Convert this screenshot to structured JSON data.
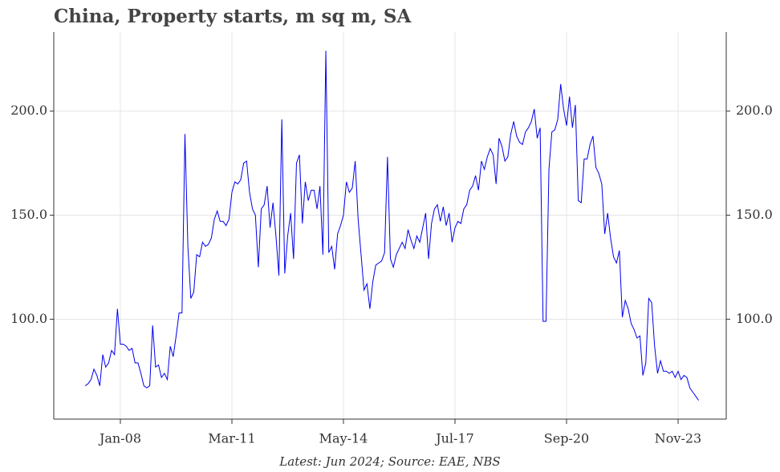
{
  "chart_data": {
    "type": "line",
    "title": "China, Property starts, m sq m, SA",
    "footnote": "Latest: Jun 2024; Source: EAE, NBS",
    "color": "#0000ee",
    "grid": true,
    "categories": [
      null,
      null,
      null,
      null,
      null,
      null,
      null,
      null,
      null,
      null,
      null,
      null,
      "Jan-08",
      null,
      null,
      null,
      null,
      null,
      null,
      null,
      null,
      null,
      null,
      null,
      null,
      null,
      null,
      null,
      null,
      null,
      null,
      null,
      null,
      null,
      null,
      null,
      null,
      null,
      null,
      null,
      null,
      null,
      null,
      null,
      null,
      null,
      null,
      null,
      null,
      null,
      "Mar-11",
      null,
      null,
      null,
      null,
      null,
      null,
      null,
      null,
      null,
      null,
      null,
      null,
      null,
      null,
      null,
      null,
      null,
      null,
      null,
      null,
      null,
      null,
      null,
      null,
      null,
      null,
      null,
      null,
      null,
      null,
      null,
      null,
      null,
      null,
      null,
      null,
      null,
      "May-14",
      null,
      null,
      null,
      null,
      null,
      null,
      null,
      null,
      null,
      null,
      null,
      null,
      null,
      null,
      null,
      null,
      null,
      null,
      null,
      null,
      null,
      null,
      null,
      null,
      null,
      null,
      null,
      null,
      null,
      null,
      null,
      null,
      null,
      null,
      null,
      null,
      null,
      "Jul-17",
      null,
      null,
      null,
      null,
      null,
      null,
      null,
      null,
      null,
      null,
      null,
      null,
      null,
      null,
      null,
      null,
      null,
      null,
      null,
      null,
      null,
      null,
      null,
      null,
      null,
      null,
      null,
      null,
      null,
      null,
      null,
      null,
      null,
      null,
      null,
      null,
      null,
      "Sep-20",
      null,
      null,
      null,
      null,
      null,
      null,
      null,
      null,
      null,
      null,
      null,
      null,
      null,
      null,
      null,
      null,
      null,
      null,
      null,
      null,
      null,
      null,
      null,
      null,
      null,
      null,
      null,
      null,
      null,
      null,
      null,
      null,
      null,
      null,
      null,
      null,
      null,
      "Nov-23",
      null,
      null,
      null,
      null,
      null,
      null,
      null
    ],
    "values": [
      68,
      69,
      71,
      76,
      73,
      68,
      83,
      77,
      79,
      85,
      83,
      105,
      88,
      88,
      87,
      85,
      86,
      79,
      79,
      74,
      68,
      67,
      68,
      97,
      77,
      78,
      72,
      74,
      71,
      87,
      82,
      92,
      103,
      103,
      189,
      135,
      110,
      113,
      131,
      130,
      137,
      135,
      136,
      139,
      148,
      152,
      147,
      147,
      145,
      148,
      161,
      166,
      165,
      167,
      175,
      176,
      161,
      153,
      150,
      125,
      153,
      155,
      164,
      144,
      156,
      140,
      121,
      196,
      122,
      140,
      151,
      129,
      175,
      179,
      146,
      166,
      157,
      162,
      162,
      153,
      164,
      131,
      229,
      132,
      135,
      124,
      141,
      145,
      150,
      166,
      161,
      163,
      176,
      148,
      131,
      114,
      117,
      105,
      118,
      126,
      127,
      128,
      132,
      178,
      129,
      125,
      131,
      134,
      137,
      134,
      143,
      138,
      134,
      140,
      137,
      144,
      151,
      129,
      146,
      153,
      155,
      147,
      154,
      145,
      151,
      137,
      144,
      147,
      146,
      153,
      155,
      162,
      164,
      169,
      162,
      176,
      172,
      178,
      182,
      179,
      165,
      187,
      183,
      176,
      178,
      189,
      195,
      188,
      185,
      184,
      190,
      192,
      195,
      201,
      187,
      192,
      99,
      99,
      172,
      190,
      191,
      196,
      213,
      201,
      193,
      207,
      192,
      203,
      157,
      156,
      177,
      177,
      184,
      188,
      173,
      170,
      165,
      141,
      151,
      139,
      130,
      127,
      133,
      101,
      109,
      105,
      98,
      95,
      91,
      92,
      73,
      79,
      110,
      108,
      87,
      74,
      80,
      75,
      75,
      74,
      75,
      72,
      75,
      71,
      73,
      72,
      67,
      65,
      63,
      61
    ],
    "ylim": [
      52,
      238
    ],
    "yticks": [
      {
        "value": 100,
        "label": "100.0"
      },
      {
        "value": 150,
        "label": "150.0"
      },
      {
        "value": 200,
        "label": "200.0"
      }
    ]
  }
}
